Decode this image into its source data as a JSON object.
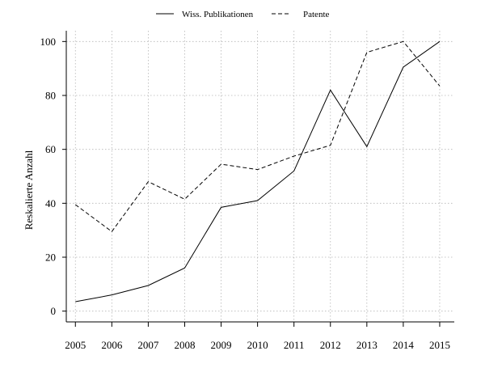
{
  "chart_data": {
    "type": "line",
    "title": "",
    "xlabel": "",
    "ylabel": "Reskalierte Anzahl",
    "x": [
      2005,
      2006,
      2007,
      2008,
      2009,
      2010,
      2011,
      2012,
      2013,
      2014,
      2015
    ],
    "x_tick_labels": [
      "2005",
      "2006",
      "2007",
      "2008",
      "2009",
      "2010",
      "2011",
      "2012",
      "2013",
      "2014",
      "2015"
    ],
    "y_ticks": [
      0,
      20,
      40,
      60,
      80,
      100
    ],
    "y_tick_labels": [
      "0",
      "20",
      "40",
      "60",
      "80",
      "100"
    ],
    "ylim": [
      -4,
      104
    ],
    "xlim": [
      2004.75,
      2015.4
    ],
    "grid": true,
    "legend_position": "top-center",
    "series": [
      {
        "name": "Wiss. Publikationen",
        "line_style": "solid",
        "color": "#000000",
        "values": [
          3.5,
          6,
          9.5,
          16,
          38.5,
          41,
          52,
          82,
          61,
          90.5,
          100
        ]
      },
      {
        "name": "Patente",
        "line_style": "dashed",
        "color": "#000000",
        "values": [
          39.5,
          29.5,
          48,
          41.5,
          54.5,
          52.5,
          57.5,
          61.5,
          96,
          100,
          83.5
        ]
      }
    ]
  }
}
